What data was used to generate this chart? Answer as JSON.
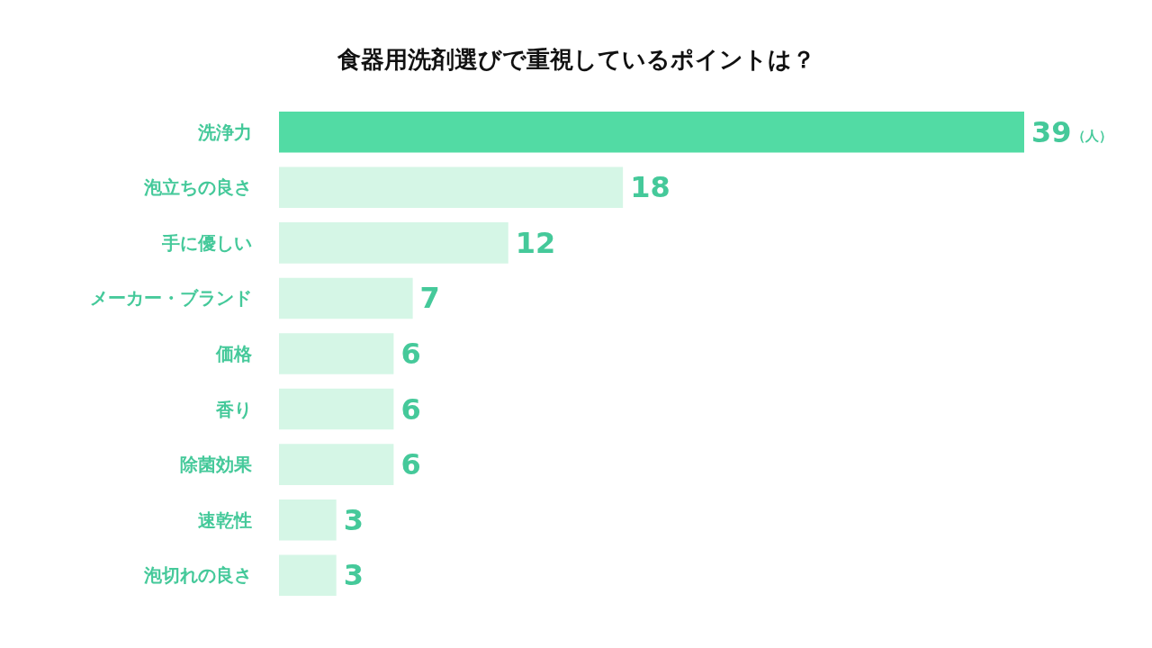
{
  "chart_data": {
    "type": "bar",
    "orientation": "horizontal",
    "title": "食器用洗剤選びで重視しているポイントは？",
    "categories": [
      "洗浄力",
      "泡立ちの良さ",
      "手に優しい",
      "メーカー・ブランド",
      "価格",
      "香り",
      "除菌効果",
      "速乾性",
      "泡切れの良さ"
    ],
    "values": [
      39,
      18,
      12,
      7,
      6,
      6,
      6,
      3,
      3
    ],
    "colors": [
      "#52dba4",
      "#d5f6e6",
      "#d5f6e6",
      "#d5f6e6",
      "#d5f6e6",
      "#d5f6e6",
      "#d5f6e6",
      "#d5f6e6",
      "#d5f6e6"
    ],
    "value_labels": [
      "39（人）",
      "18",
      "12",
      "7",
      "6",
      "6",
      "6",
      "3",
      "3"
    ]
  }
}
